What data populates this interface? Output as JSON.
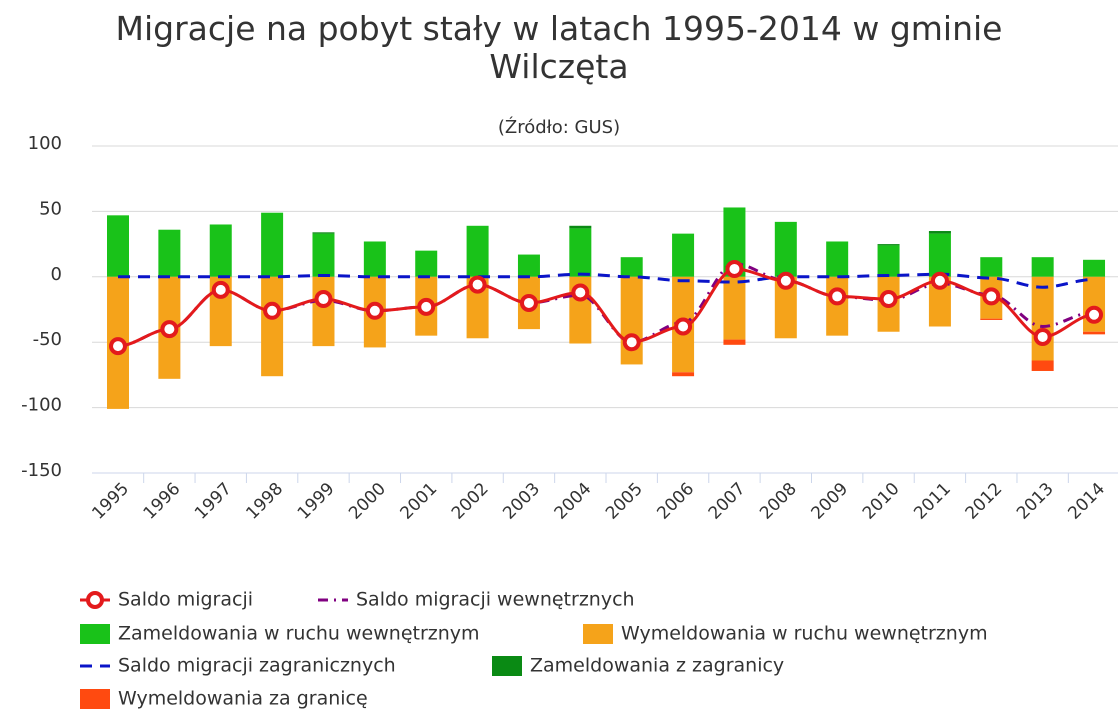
{
  "chart_data": {
    "type": "combo",
    "title": "Migracje na pobyt stały w latach 1995-2014 w gminie Wilczęta",
    "subtitle": "(Źródło: GUS)",
    "categories": [
      "1995",
      "1996",
      "1997",
      "1998",
      "1999",
      "2000",
      "2001",
      "2002",
      "2003",
      "2004",
      "2005",
      "2006",
      "2007",
      "2008",
      "2009",
      "2010",
      "2011",
      "2012",
      "2013",
      "2014"
    ],
    "ylim": [
      -150,
      100
    ],
    "yticks": [
      -150,
      -100,
      -50,
      0,
      50,
      100
    ],
    "grid": true,
    "series": [
      {
        "name": "Saldo migracji",
        "kind": "line",
        "color": "#e31a1c",
        "values": [
          -53,
          -40,
          -10,
          -26,
          -17,
          -26,
          -23,
          -6,
          -20,
          -12,
          -50,
          -38,
          6,
          -3,
          -15,
          -17,
          -3,
          -15,
          -46,
          -29
        ]
      },
      {
        "name": "Saldo migracji wewnętrznych",
        "kind": "line",
        "color": "#800080",
        "values": [
          -53,
          -40,
          -10,
          -26,
          -18,
          -26,
          -23,
          -6,
          -20,
          -14,
          -50,
          -35,
          10,
          -3,
          -15,
          -18,
          -5,
          -14,
          -38,
          -27
        ]
      },
      {
        "name": "Zameldowania w ruchu wewnętrznym",
        "kind": "bar",
        "color": "#19c219",
        "values": [
          47,
          36,
          40,
          49,
          33,
          27,
          20,
          39,
          17,
          37,
          15,
          33,
          53,
          42,
          27,
          24,
          33,
          15,
          15,
          13
        ]
      },
      {
        "name": "Wymeldowania w ruchu wewnętrznym",
        "kind": "bar",
        "color": "#f5a31a",
        "values": [
          -101,
          -78,
          -53,
          -76,
          -53,
          -54,
          -45,
          -47,
          -40,
          -51,
          -67,
          -73,
          -48,
          -47,
          -45,
          -42,
          -38,
          -32,
          -64,
          -42
        ]
      },
      {
        "name": "Saldo migracji zagranicznych",
        "kind": "line",
        "color": "#0a14c8",
        "values": [
          0,
          0,
          0,
          0,
          1,
          0,
          0,
          0,
          0,
          2,
          0,
          -3,
          -4,
          0,
          0,
          1,
          2,
          -1,
          -8,
          -2
        ]
      },
      {
        "name": "Zameldowania z zagranicy",
        "kind": "bar",
        "color": "#0a8a14",
        "values": [
          0,
          0,
          0,
          0,
          1,
          0,
          0,
          0,
          0,
          2,
          0,
          0,
          0,
          0,
          0,
          1,
          2,
          0,
          0,
          0
        ]
      },
      {
        "name": "Wymeldowania za granicę",
        "kind": "bar",
        "color": "#ff4a10",
        "values": [
          0,
          0,
          0,
          0,
          0,
          0,
          0,
          0,
          0,
          0,
          0,
          -3,
          -4,
          0,
          0,
          0,
          0,
          -1,
          -8,
          -2
        ]
      }
    ]
  }
}
